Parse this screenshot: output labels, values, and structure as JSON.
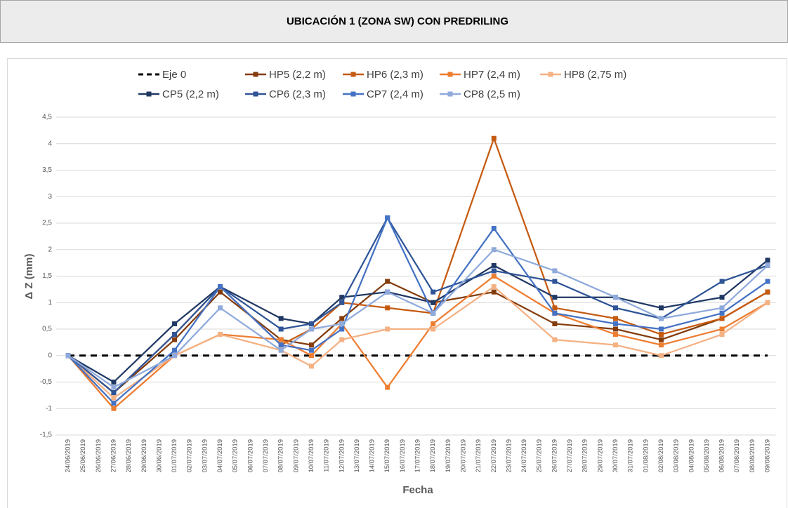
{
  "chart_data": {
    "type": "line",
    "title": "UBICACIÓN 1 (ZONA SW) CON PREDRILING",
    "y_label": "Δ Z (mm)",
    "x_label": "Fecha",
    "x": [
      "24/06/2019",
      "27/06/2019",
      "01/07/2019",
      "04/07/2019",
      "08/07/2019",
      "10/07/2019",
      "12/07/2019",
      "15/07/2019",
      "18/07/2019",
      "22/07/2019",
      "26/07/2019",
      "30/07/2019",
      "02/08/2019",
      "06/08/2019",
      "09/08/2019"
    ],
    "xticks": [
      "24/06/2019",
      "25/06/2019",
      "26/06/2019",
      "27/06/2019",
      "28/06/2019",
      "29/06/2019",
      "30/06/2019",
      "01/07/2019",
      "02/07/2019",
      "03/07/2019",
      "04/07/2019",
      "05/07/2019",
      "06/07/2019",
      "07/07/2019",
      "08/07/2019",
      "09/07/2019",
      "10/07/2019",
      "11/07/2019",
      "12/07/2019",
      "13/07/2019",
      "14/07/2019",
      "15/07/2019",
      "16/07/2019",
      "17/07/2019",
      "18/07/2019",
      "19/07/2019",
      "20/07/2019",
      "21/07/2019",
      "22/07/2019",
      "23/07/2019",
      "24/07/2019",
      "25/07/2019",
      "26/07/2019",
      "27/07/2019",
      "28/07/2019",
      "29/07/2019",
      "30/07/2019",
      "31/07/2019",
      "01/08/2019",
      "02/08/2019",
      "03/08/2019",
      "04/08/2019",
      "05/08/2019",
      "06/08/2019",
      "07/08/2019",
      "08/08/2019",
      "09/08/2019"
    ],
    "ylim": [
      -1.5,
      4.5
    ],
    "yticks": [
      {
        "value": -1.5,
        "label": "-1,5"
      },
      {
        "value": -1,
        "label": "-1"
      },
      {
        "value": -0.5,
        "label": "-0,5"
      },
      0,
      {
        "value": 0.5,
        "label": "0,5"
      },
      1,
      {
        "value": 1.5,
        "label": "1,5"
      },
      2,
      {
        "value": 2.5,
        "label": "2,5"
      },
      3,
      {
        "value": 3.5,
        "label": "3,5"
      },
      4,
      {
        "value": 4.5,
        "label": "4,5"
      }
    ],
    "grid": true,
    "series": [
      {
        "name": "Eje 0",
        "color": "#000000",
        "dashed": true,
        "markers": false,
        "values": [
          0,
          0,
          0,
          0,
          0,
          0,
          0,
          0,
          0,
          0,
          0,
          0,
          0,
          0,
          0
        ]
      },
      {
        "name": "HP5 (2,2 m)",
        "color": "#843c0c",
        "values": [
          0,
          -0.7,
          0.3,
          1.2,
          0.3,
          0.2,
          0.7,
          1.4,
          1.0,
          1.2,
          0.6,
          0.5,
          0.3,
          0.7,
          1.2
        ]
      },
      {
        "name": "HP6 (2,3 m)",
        "color": "#c55a11",
        "values": [
          0,
          -0.7,
          0.4,
          1.3,
          0.2,
          0.5,
          1.0,
          0.9,
          0.8,
          4.1,
          0.9,
          0.7,
          0.4,
          0.7,
          1.2
        ]
      },
      {
        "name": "HP7 (2,4 m)",
        "color": "#ed7d31",
        "values": [
          0,
          -1.0,
          0.0,
          0.4,
          0.3,
          0.0,
          0.6,
          -0.6,
          0.6,
          1.5,
          0.8,
          0.4,
          0.2,
          0.5,
          1.0
        ]
      },
      {
        "name": "HP8 (2,75 m)",
        "color": "#f4b183",
        "values": [
          0,
          -0.8,
          0.0,
          0.4,
          0.1,
          -0.2,
          0.3,
          0.5,
          0.5,
          1.3,
          0.3,
          0.2,
          0.0,
          0.4,
          1.0
        ]
      },
      {
        "name": "CP5 (2,2 m)",
        "color": "#203864",
        "values": [
          0,
          -0.5,
          0.6,
          1.3,
          0.7,
          0.6,
          1.1,
          1.2,
          1.0,
          1.7,
          1.1,
          1.1,
          0.9,
          1.1,
          1.8
        ]
      },
      {
        "name": "CP6 (2,3 m)",
        "color": "#2f5597",
        "values": [
          0,
          -0.7,
          0.4,
          1.3,
          0.5,
          0.6,
          1.0,
          2.6,
          1.2,
          1.6,
          1.4,
          0.9,
          0.7,
          1.4,
          1.7
        ]
      },
      {
        "name": "CP7 (2,4 m)",
        "color": "#4472c4",
        "values": [
          0,
          -0.9,
          0.1,
          1.3,
          0.2,
          0.1,
          0.5,
          2.6,
          0.8,
          2.4,
          0.8,
          0.6,
          0.5,
          0.8,
          1.4
        ]
      },
      {
        "name": "CP8 (2,5 m)",
        "color": "#8faadc",
        "values": [
          0,
          -0.6,
          0.0,
          0.9,
          0.1,
          0.5,
          0.6,
          1.2,
          0.8,
          2.0,
          1.6,
          1.1,
          0.7,
          0.9,
          1.7
        ]
      }
    ]
  }
}
